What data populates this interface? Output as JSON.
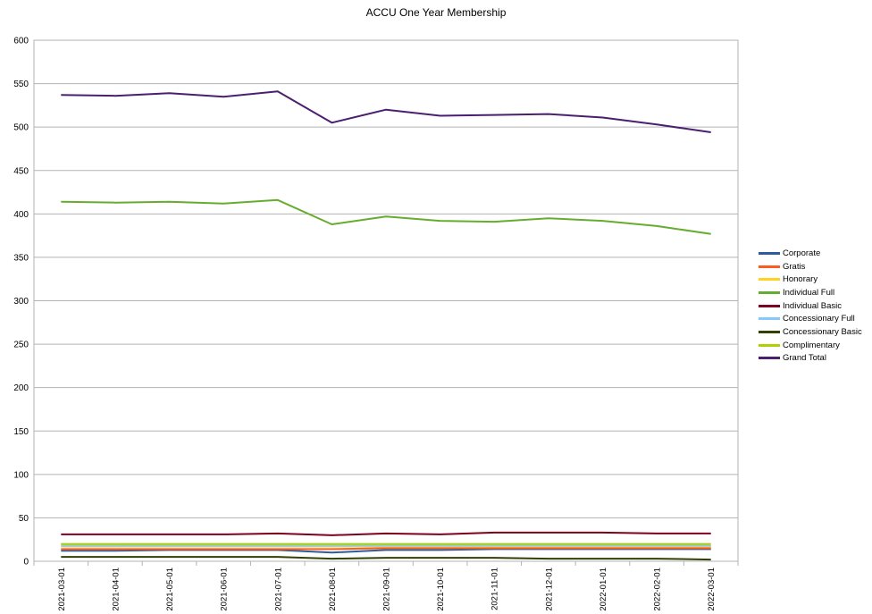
{
  "chart_data": {
    "type": "line",
    "title": "ACCU One Year Membership",
    "xlabel": "",
    "ylabel": "",
    "ylim": [
      0,
      600
    ],
    "yticks": [
      0,
      50,
      100,
      150,
      200,
      250,
      300,
      350,
      400,
      450,
      500,
      550,
      600
    ],
    "grid": true,
    "legend_position": "right",
    "categories": [
      "2021-03-01",
      "2021-04-01",
      "2021-05-01",
      "2021-06-01",
      "2021-07-01",
      "2021-08-01",
      "2021-09-01",
      "2021-10-01",
      "2021-11-01",
      "2021-12-01",
      "2022-01-01",
      "2022-02-01",
      "2022-03-01"
    ],
    "series": [
      {
        "name": "Corporate",
        "color": "#2a5d9f",
        "values": [
          12,
          12,
          13,
          13,
          13,
          10,
          13,
          13,
          14,
          14,
          14,
          14,
          14
        ]
      },
      {
        "name": "Gratis",
        "color": "#ff5a1f",
        "values": [
          14,
          14,
          14,
          14,
          14,
          14,
          15,
          15,
          15,
          15,
          15,
          15,
          15
        ]
      },
      {
        "name": "Honorary",
        "color": "#ffd320",
        "values": [
          17,
          17,
          17,
          17,
          17,
          17,
          17,
          17,
          17,
          17,
          17,
          17,
          17
        ]
      },
      {
        "name": "Individual Full",
        "color": "#66ad2f",
        "values": [
          414,
          413,
          414,
          412,
          416,
          388,
          397,
          392,
          391,
          395,
          392,
          386,
          377
        ]
      },
      {
        "name": "Individual Basic",
        "color": "#7e0021",
        "values": [
          31,
          31,
          31,
          31,
          32,
          30,
          32,
          31,
          33,
          33,
          33,
          32,
          32
        ]
      },
      {
        "name": "Concessionary Full",
        "color": "#83caff",
        "values": [
          18,
          18,
          18,
          18,
          18,
          18,
          18,
          18,
          18,
          18,
          18,
          18,
          18
        ]
      },
      {
        "name": "Concessionary Basic",
        "color": "#314004",
        "values": [
          5,
          5,
          5,
          5,
          5,
          3,
          4,
          4,
          4,
          3,
          3,
          3,
          2
        ]
      },
      {
        "name": "Complimentary",
        "color": "#aecf00",
        "values": [
          20,
          20,
          20,
          20,
          20,
          20,
          20,
          20,
          20,
          20,
          20,
          20,
          20
        ]
      },
      {
        "name": "Grand Total",
        "color": "#4b1f6f",
        "values": [
          537,
          536,
          539,
          535,
          541,
          505,
          520,
          513,
          514,
          515,
          511,
          503,
          494
        ]
      }
    ]
  }
}
